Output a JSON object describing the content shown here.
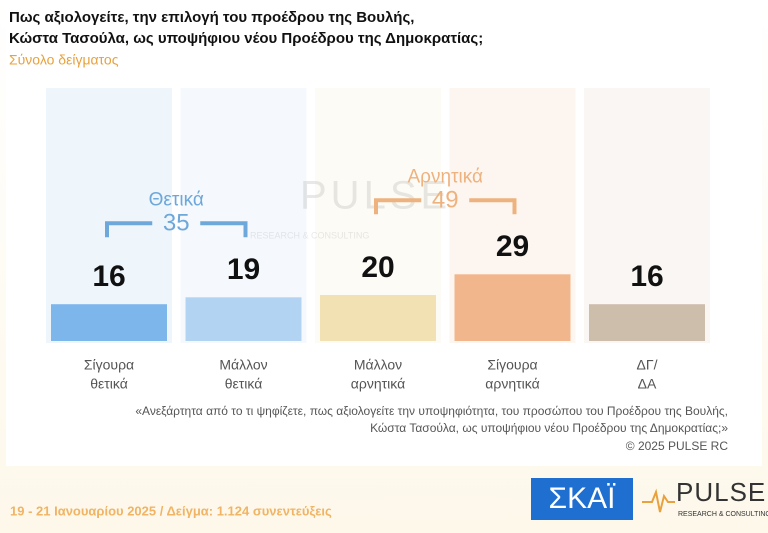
{
  "chart_data": {
    "type": "bar",
    "title": [
      "Πως αξιολογείτε, την επιλογή του προέδρου της Βουλής,",
      "Κώστα Τασούλα, ως υποψήφιου νέου Προέδρου της Δημοκρατίας;"
    ],
    "subtitle": "Σύνολο δείγματος",
    "categories": [
      [
        "Σίγουρα",
        "θετικά"
      ],
      [
        "Μάλλον",
        "θετικά"
      ],
      [
        "Μάλλον",
        "αρνητικά"
      ],
      [
        "Σίγουρα",
        "αρνητικά"
      ],
      [
        "ΔΓ/",
        "ΔΑ"
      ]
    ],
    "values": [
      16,
      19,
      20,
      29,
      16
    ],
    "colors": [
      "#7db6ea",
      "#b3d3f2",
      "#f1e1b3",
      "#f2b68c",
      "#cdbdab"
    ],
    "groups": [
      {
        "name": "Θετικά",
        "value": 35,
        "color": "#6ea7da",
        "categories": [
          0,
          1
        ]
      },
      {
        "name": "Αρνητικά",
        "value": 49,
        "color": "#eeb27f",
        "categories": [
          2,
          3
        ]
      }
    ]
  },
  "notes": {
    "question": [
      "«Ανεξάρτητα από το τι ψηφίζετε, πως αξιολογείτε την υποψηφιότητα, του προσώπου του Προέδρου της Βουλής,",
      "Κώστα Τασούλα, ως υποψήφιου νέου Προέδρου της Δημοκρατίας;»"
    ],
    "copyright": "©  2025  PULSE RC"
  },
  "footer": {
    "fieldwork": "19 - 21 Ιανουαρίου 2025  /  Δείγμα:  1.124 συνεντεύξεις",
    "logo_skai": "ΣΚΑΪ",
    "logo_pulse": "PULSE",
    "logo_pulse_sub": "RESEARCH & CONSULTING"
  }
}
